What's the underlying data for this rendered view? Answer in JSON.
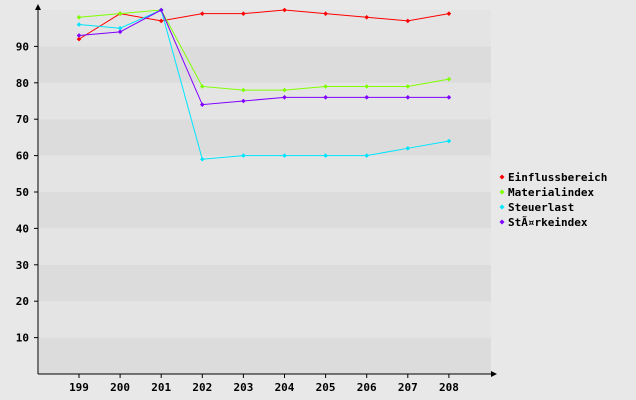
{
  "chart_data": {
    "type": "line",
    "title": "",
    "xlabel": "",
    "ylabel": "",
    "categories": [
      "199",
      "200",
      "201",
      "202",
      "203",
      "204",
      "205",
      "206",
      "207",
      "208"
    ],
    "ylim": [
      0,
      100
    ],
    "yticks": [
      10,
      20,
      30,
      40,
      50,
      60,
      70,
      80,
      90
    ],
    "yticks_labels": [
      "10",
      "20",
      "30",
      "40",
      "50",
      "60",
      "70",
      "80",
      "90"
    ],
    "grid": "horizontal bands",
    "legend_position": "right",
    "series": [
      {
        "name": "Einflussbereich",
        "color": "#ff0000",
        "values": [
          92,
          99,
          97,
          99,
          99,
          100,
          99,
          98,
          97,
          99
        ]
      },
      {
        "name": "Materialindex",
        "color": "#80ff00",
        "values": [
          98,
          99,
          100,
          79,
          78,
          78,
          79,
          79,
          79,
          81
        ]
      },
      {
        "name": "Steuerlast",
        "color": "#00e5ff",
        "values": [
          96,
          95,
          100,
          59,
          60,
          60,
          60,
          60,
          62,
          64
        ]
      },
      {
        "name": "StÃ¤rkeindex",
        "color": "#8000ff",
        "values": [
          93,
          94,
          100,
          74,
          75,
          76,
          76,
          76,
          76,
          76
        ]
      }
    ]
  }
}
